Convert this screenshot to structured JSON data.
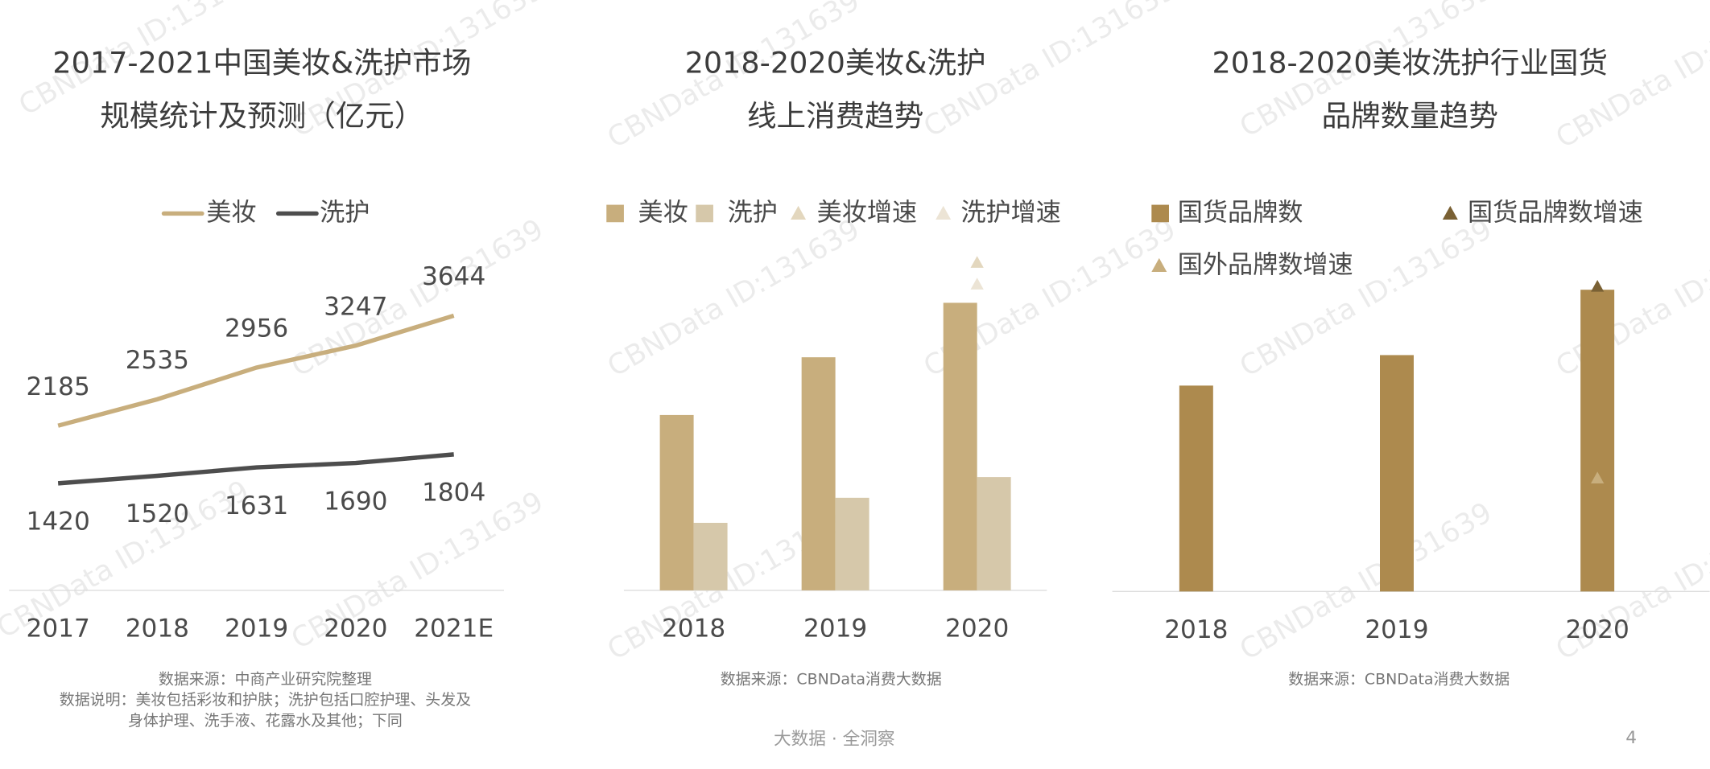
{
  "watermark": "CBNData ID:131639",
  "footer": {
    "slogan": "大数据 · 全洞察",
    "page": "4"
  },
  "chart_data": [
    {
      "type": "line",
      "title": [
        "2017-2021中国美妆&洗护市场",
        "规模统计及预测（亿元）"
      ],
      "categories": [
        "2017",
        "2018",
        "2019",
        "2020",
        "2021E"
      ],
      "series": [
        {
          "name": "美妆",
          "color": "#c8ae7d",
          "values": [
            2185,
            2535,
            2956,
            3247,
            3644
          ]
        },
        {
          "name": "洗护",
          "color": "#4d4d4d",
          "values": [
            1420,
            1520,
            1631,
            1690,
            1804
          ]
        }
      ],
      "notes": [
        "数据来源：中商产业研究院整理",
        "数据说明：美妆包括彩妆和护肤；洗护包括口腔护理、头发及",
        "身体护理、洗手液、花露水及其他；下同"
      ]
    },
    {
      "type": "bar",
      "title": [
        "2018-2020美妆&洗护",
        "线上消费趋势"
      ],
      "categories": [
        "2018",
        "2019",
        "2020"
      ],
      "series": [
        {
          "name": "美妆",
          "color": "#c8ae7d",
          "values": [
            161,
            214,
            264
          ]
        },
        {
          "name": "洗护",
          "color": "#d6c8aa",
          "values": [
            62,
            85,
            104
          ]
        },
        {
          "name": "美妆增速",
          "color": "#e3d7be",
          "mark": "triangle",
          "values": [
            null,
            null,
            301
          ]
        },
        {
          "name": "洗护增速",
          "color": "#ece4d5",
          "mark": "triangle",
          "values": [
            null,
            null,
            281
          ]
        }
      ],
      "notes": [
        "数据来源：CBNData消费大数据"
      ]
    },
    {
      "type": "bar",
      "title": [
        "2018-2020美妆洗护行业国货",
        "品牌数量趋势"
      ],
      "categories": [
        "2018",
        "2019",
        "2020"
      ],
      "series": [
        {
          "name": "国货品牌数",
          "color": "#ad8a4e",
          "values": [
            189,
            217,
            277
          ]
        },
        {
          "name": "国货品牌数增速",
          "color": "#7a6134",
          "mark": "triangle",
          "values": [
            null,
            null,
            280
          ]
        },
        {
          "name": "国外品牌数增速",
          "color": "#c8ae7d",
          "mark": "triangle",
          "values": [
            null,
            null,
            104
          ]
        }
      ],
      "notes": [
        "数据来源：CBNData消费大数据"
      ]
    }
  ]
}
